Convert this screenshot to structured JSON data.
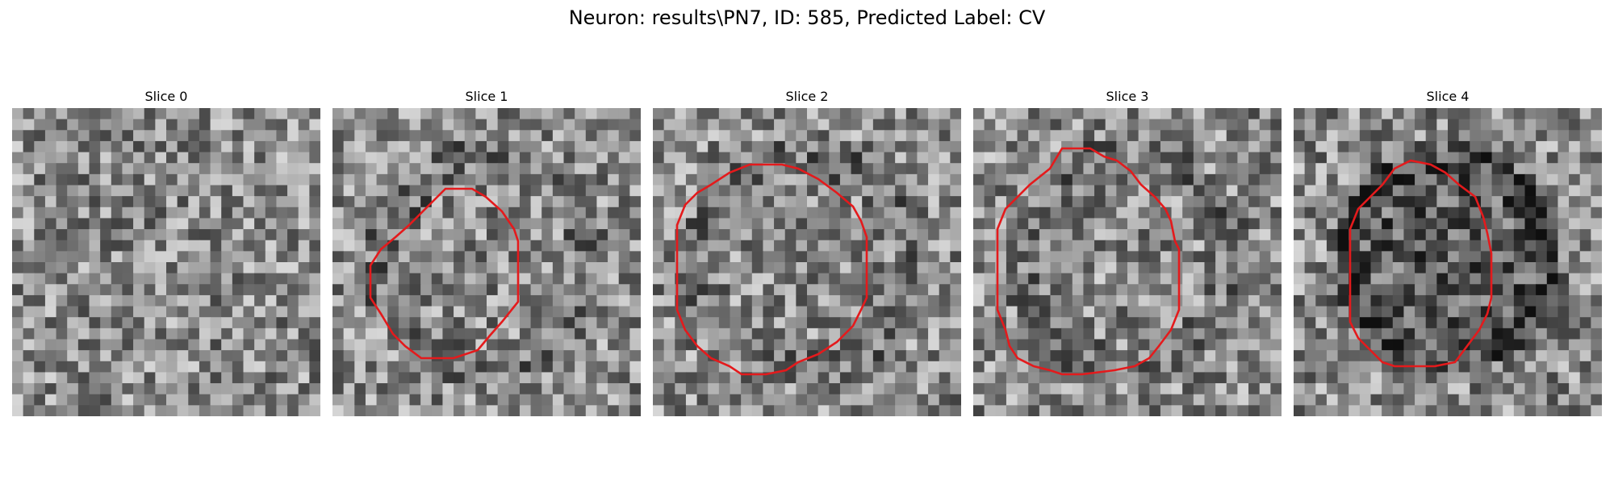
{
  "figure": {
    "suptitle": "Neuron: results\\PN7, ID: 585, Predicted Label: CV"
  },
  "slices": [
    {
      "title": "Slice 0",
      "has_contour": false
    },
    {
      "title": "Slice 1",
      "has_contour": true
    },
    {
      "title": "Slice 2",
      "has_contour": true
    },
    {
      "title": "Slice 3",
      "has_contour": true
    },
    {
      "title": "Slice 4",
      "has_contour": true
    }
  ],
  "colors": {
    "contour": "#e41a1c",
    "colormap": "gray"
  }
}
